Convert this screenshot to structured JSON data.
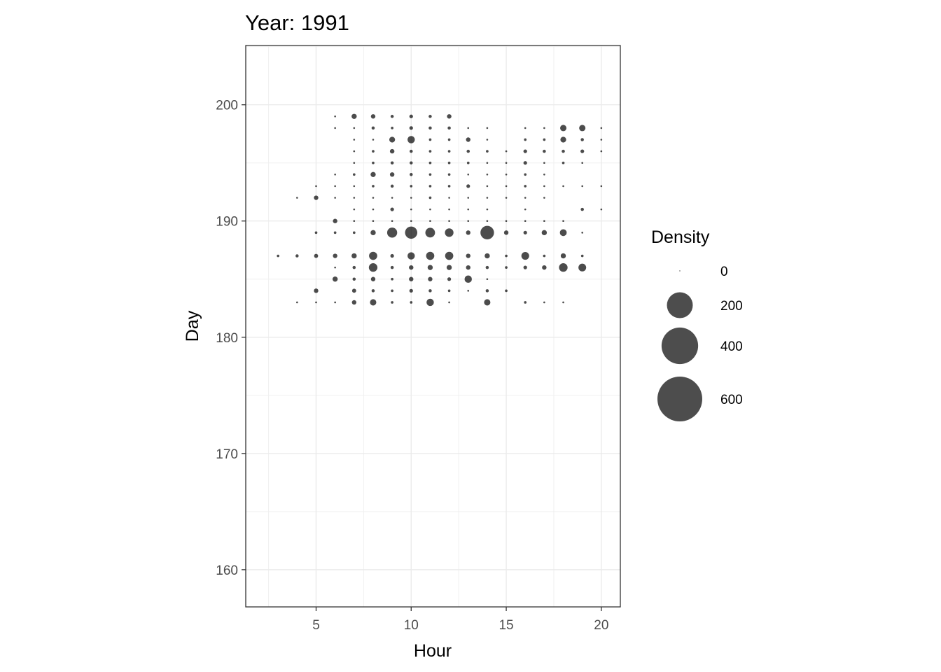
{
  "chart_data": {
    "type": "scatter",
    "title": "Year: 1991",
    "xlabel": "Hour",
    "ylabel": "Day",
    "xlim": [
      1.3,
      21.0
    ],
    "ylim": [
      156.8,
      205.1
    ],
    "x_ticks": [
      5,
      10,
      15,
      20
    ],
    "y_ticks": [
      160,
      170,
      180,
      190,
      200
    ],
    "grid": true,
    "legend": {
      "title": "Density",
      "placement": "right",
      "entries": [
        {
          "label": "0",
          "value": 0
        },
        {
          "label": "200",
          "value": 200
        },
        {
          "label": "400",
          "value": 400
        },
        {
          "label": "600",
          "value": 600
        }
      ]
    },
    "point_color": "#000000",
    "legend_color": "#4d4d4d",
    "points": [
      {
        "x": 6,
        "y": 199,
        "d": 1
      },
      {
        "x": 7,
        "y": 199,
        "d": 8
      },
      {
        "x": 8,
        "y": 199,
        "d": 6
      },
      {
        "x": 9,
        "y": 199,
        "d": 3
      },
      {
        "x": 10,
        "y": 199,
        "d": 4
      },
      {
        "x": 11,
        "y": 199,
        "d": 3
      },
      {
        "x": 12,
        "y": 199,
        "d": 6
      },
      {
        "x": 6,
        "y": 198,
        "d": 1
      },
      {
        "x": 7,
        "y": 198,
        "d": 1
      },
      {
        "x": 8,
        "y": 198,
        "d": 3
      },
      {
        "x": 9,
        "y": 198,
        "d": 2
      },
      {
        "x": 10,
        "y": 198,
        "d": 4
      },
      {
        "x": 11,
        "y": 198,
        "d": 3
      },
      {
        "x": 12,
        "y": 198,
        "d": 3
      },
      {
        "x": 13,
        "y": 198,
        "d": 1
      },
      {
        "x": 14,
        "y": 198,
        "d": 1
      },
      {
        "x": 16,
        "y": 198,
        "d": 1
      },
      {
        "x": 17,
        "y": 198,
        "d": 1
      },
      {
        "x": 18,
        "y": 198,
        "d": 12
      },
      {
        "x": 19,
        "y": 198,
        "d": 12
      },
      {
        "x": 20,
        "y": 198,
        "d": 1
      },
      {
        "x": 7,
        "y": 197,
        "d": 1
      },
      {
        "x": 8,
        "y": 197,
        "d": 1
      },
      {
        "x": 9,
        "y": 197,
        "d": 10
      },
      {
        "x": 10,
        "y": 197,
        "d": 16
      },
      {
        "x": 11,
        "y": 197,
        "d": 2
      },
      {
        "x": 12,
        "y": 197,
        "d": 2
      },
      {
        "x": 13,
        "y": 197,
        "d": 6
      },
      {
        "x": 14,
        "y": 197,
        "d": 1
      },
      {
        "x": 16,
        "y": 197,
        "d": 2
      },
      {
        "x": 17,
        "y": 197,
        "d": 2
      },
      {
        "x": 18,
        "y": 197,
        "d": 10
      },
      {
        "x": 19,
        "y": 197,
        "d": 3
      },
      {
        "x": 20,
        "y": 197,
        "d": 1
      },
      {
        "x": 7,
        "y": 196,
        "d": 1
      },
      {
        "x": 8,
        "y": 196,
        "d": 2
      },
      {
        "x": 9,
        "y": 196,
        "d": 6
      },
      {
        "x": 10,
        "y": 196,
        "d": 3
      },
      {
        "x": 11,
        "y": 196,
        "d": 2
      },
      {
        "x": 12,
        "y": 196,
        "d": 2
      },
      {
        "x": 13,
        "y": 196,
        "d": 3
      },
      {
        "x": 14,
        "y": 196,
        "d": 2
      },
      {
        "x": 15,
        "y": 196,
        "d": 1
      },
      {
        "x": 16,
        "y": 196,
        "d": 4
      },
      {
        "x": 17,
        "y": 196,
        "d": 3
      },
      {
        "x": 18,
        "y": 196,
        "d": 3
      },
      {
        "x": 19,
        "y": 196,
        "d": 4
      },
      {
        "x": 20,
        "y": 196,
        "d": 1
      },
      {
        "x": 7,
        "y": 195,
        "d": 1
      },
      {
        "x": 8,
        "y": 195,
        "d": 2
      },
      {
        "x": 9,
        "y": 195,
        "d": 3
      },
      {
        "x": 10,
        "y": 195,
        "d": 3
      },
      {
        "x": 11,
        "y": 195,
        "d": 2
      },
      {
        "x": 12,
        "y": 195,
        "d": 2
      },
      {
        "x": 13,
        "y": 195,
        "d": 2
      },
      {
        "x": 14,
        "y": 195,
        "d": 1
      },
      {
        "x": 15,
        "y": 195,
        "d": 1
      },
      {
        "x": 16,
        "y": 195,
        "d": 4
      },
      {
        "x": 17,
        "y": 195,
        "d": 1
      },
      {
        "x": 18,
        "y": 195,
        "d": 2
      },
      {
        "x": 19,
        "y": 195,
        "d": 1
      },
      {
        "x": 6,
        "y": 194,
        "d": 1
      },
      {
        "x": 7,
        "y": 194,
        "d": 2
      },
      {
        "x": 8,
        "y": 194,
        "d": 8
      },
      {
        "x": 9,
        "y": 194,
        "d": 6
      },
      {
        "x": 10,
        "y": 194,
        "d": 3
      },
      {
        "x": 11,
        "y": 194,
        "d": 2
      },
      {
        "x": 12,
        "y": 194,
        "d": 2
      },
      {
        "x": 13,
        "y": 194,
        "d": 1
      },
      {
        "x": 14,
        "y": 194,
        "d": 1
      },
      {
        "x": 15,
        "y": 194,
        "d": 1
      },
      {
        "x": 16,
        "y": 194,
        "d": 2
      },
      {
        "x": 17,
        "y": 194,
        "d": 1
      },
      {
        "x": 6,
        "y": 193,
        "d": 1
      },
      {
        "x": 7,
        "y": 193,
        "d": 1
      },
      {
        "x": 8,
        "y": 193,
        "d": 2
      },
      {
        "x": 9,
        "y": 193,
        "d": 3
      },
      {
        "x": 10,
        "y": 193,
        "d": 2
      },
      {
        "x": 11,
        "y": 193,
        "d": 2
      },
      {
        "x": 12,
        "y": 193,
        "d": 2
      },
      {
        "x": 13,
        "y": 193,
        "d": 4
      },
      {
        "x": 14,
        "y": 193,
        "d": 1
      },
      {
        "x": 15,
        "y": 193,
        "d": 1
      },
      {
        "x": 16,
        "y": 193,
        "d": 2
      },
      {
        "x": 17,
        "y": 193,
        "d": 1
      },
      {
        "x": 5,
        "y": 193,
        "d": 1
      },
      {
        "x": 18,
        "y": 193,
        "d": 1
      },
      {
        "x": 19,
        "y": 193,
        "d": 1
      },
      {
        "x": 20,
        "y": 193,
        "d": 1
      },
      {
        "x": 4,
        "y": 192,
        "d": 1
      },
      {
        "x": 5,
        "y": 192,
        "d": 6
      },
      {
        "x": 6,
        "y": 192,
        "d": 1
      },
      {
        "x": 7,
        "y": 192,
        "d": 1
      },
      {
        "x": 8,
        "y": 192,
        "d": 1
      },
      {
        "x": 9,
        "y": 192,
        "d": 1
      },
      {
        "x": 10,
        "y": 192,
        "d": 1
      },
      {
        "x": 11,
        "y": 192,
        "d": 2
      },
      {
        "x": 12,
        "y": 192,
        "d": 1
      },
      {
        "x": 13,
        "y": 192,
        "d": 1
      },
      {
        "x": 14,
        "y": 192,
        "d": 1
      },
      {
        "x": 15,
        "y": 192,
        "d": 1
      },
      {
        "x": 16,
        "y": 192,
        "d": 1
      },
      {
        "x": 17,
        "y": 192,
        "d": 1
      },
      {
        "x": 7,
        "y": 191,
        "d": 1
      },
      {
        "x": 8,
        "y": 191,
        "d": 1
      },
      {
        "x": 9,
        "y": 191,
        "d": 4
      },
      {
        "x": 10,
        "y": 191,
        "d": 1
      },
      {
        "x": 11,
        "y": 191,
        "d": 1
      },
      {
        "x": 12,
        "y": 191,
        "d": 1
      },
      {
        "x": 13,
        "y": 191,
        "d": 1
      },
      {
        "x": 14,
        "y": 191,
        "d": 1
      },
      {
        "x": 16,
        "y": 191,
        "d": 1
      },
      {
        "x": 19,
        "y": 191,
        "d": 3
      },
      {
        "x": 20,
        "y": 191,
        "d": 1
      },
      {
        "x": 6,
        "y": 190,
        "d": 6
      },
      {
        "x": 7,
        "y": 190,
        "d": 1
      },
      {
        "x": 8,
        "y": 190,
        "d": 1
      },
      {
        "x": 9,
        "y": 190,
        "d": 1
      },
      {
        "x": 10,
        "y": 190,
        "d": 1
      },
      {
        "x": 11,
        "y": 190,
        "d": 1
      },
      {
        "x": 12,
        "y": 190,
        "d": 1
      },
      {
        "x": 13,
        "y": 190,
        "d": 1
      },
      {
        "x": 14,
        "y": 190,
        "d": 1
      },
      {
        "x": 15,
        "y": 190,
        "d": 1
      },
      {
        "x": 16,
        "y": 190,
        "d": 1
      },
      {
        "x": 17,
        "y": 190,
        "d": 1
      },
      {
        "x": 18,
        "y": 190,
        "d": 1
      },
      {
        "x": 5,
        "y": 189,
        "d": 2
      },
      {
        "x": 6,
        "y": 189,
        "d": 2
      },
      {
        "x": 7,
        "y": 189,
        "d": 2
      },
      {
        "x": 8,
        "y": 189,
        "d": 8
      },
      {
        "x": 9,
        "y": 189,
        "d": 30
      },
      {
        "x": 10,
        "y": 189,
        "d": 45
      },
      {
        "x": 11,
        "y": 189,
        "d": 28
      },
      {
        "x": 12,
        "y": 189,
        "d": 22
      },
      {
        "x": 13,
        "y": 189,
        "d": 6
      },
      {
        "x": 14,
        "y": 189,
        "d": 55
      },
      {
        "x": 15,
        "y": 189,
        "d": 6
      },
      {
        "x": 16,
        "y": 189,
        "d": 4
      },
      {
        "x": 17,
        "y": 189,
        "d": 8
      },
      {
        "x": 18,
        "y": 189,
        "d": 14
      },
      {
        "x": 19,
        "y": 189,
        "d": 1
      },
      {
        "x": 3,
        "y": 187,
        "d": 2
      },
      {
        "x": 4,
        "y": 187,
        "d": 3
      },
      {
        "x": 5,
        "y": 187,
        "d": 5
      },
      {
        "x": 6,
        "y": 187,
        "d": 6
      },
      {
        "x": 7,
        "y": 187,
        "d": 8
      },
      {
        "x": 8,
        "y": 187,
        "d": 20
      },
      {
        "x": 9,
        "y": 187,
        "d": 4
      },
      {
        "x": 10,
        "y": 187,
        "d": 16
      },
      {
        "x": 11,
        "y": 187,
        "d": 20
      },
      {
        "x": 12,
        "y": 187,
        "d": 20
      },
      {
        "x": 13,
        "y": 187,
        "d": 6
      },
      {
        "x": 14,
        "y": 187,
        "d": 8
      },
      {
        "x": 15,
        "y": 187,
        "d": 2
      },
      {
        "x": 16,
        "y": 187,
        "d": 18
      },
      {
        "x": 17,
        "y": 187,
        "d": 2
      },
      {
        "x": 18,
        "y": 187,
        "d": 8
      },
      {
        "x": 19,
        "y": 187,
        "d": 2
      },
      {
        "x": 6,
        "y": 186,
        "d": 1
      },
      {
        "x": 7,
        "y": 186,
        "d": 3
      },
      {
        "x": 8,
        "y": 186,
        "d": 22
      },
      {
        "x": 9,
        "y": 186,
        "d": 3
      },
      {
        "x": 10,
        "y": 186,
        "d": 6
      },
      {
        "x": 11,
        "y": 186,
        "d": 8
      },
      {
        "x": 12,
        "y": 186,
        "d": 8
      },
      {
        "x": 13,
        "y": 186,
        "d": 6
      },
      {
        "x": 14,
        "y": 186,
        "d": 3
      },
      {
        "x": 15,
        "y": 186,
        "d": 2
      },
      {
        "x": 16,
        "y": 186,
        "d": 4
      },
      {
        "x": 17,
        "y": 186,
        "d": 6
      },
      {
        "x": 18,
        "y": 186,
        "d": 22
      },
      {
        "x": 19,
        "y": 186,
        "d": 18
      },
      {
        "x": 6,
        "y": 185,
        "d": 8
      },
      {
        "x": 7,
        "y": 185,
        "d": 3
      },
      {
        "x": 8,
        "y": 185,
        "d": 6
      },
      {
        "x": 9,
        "y": 185,
        "d": 2
      },
      {
        "x": 10,
        "y": 185,
        "d": 6
      },
      {
        "x": 11,
        "y": 185,
        "d": 6
      },
      {
        "x": 12,
        "y": 185,
        "d": 4
      },
      {
        "x": 13,
        "y": 185,
        "d": 16
      },
      {
        "x": 14,
        "y": 185,
        "d": 1
      },
      {
        "x": 5,
        "y": 184,
        "d": 6
      },
      {
        "x": 7,
        "y": 184,
        "d": 5
      },
      {
        "x": 8,
        "y": 184,
        "d": 3
      },
      {
        "x": 9,
        "y": 184,
        "d": 2
      },
      {
        "x": 10,
        "y": 184,
        "d": 4
      },
      {
        "x": 11,
        "y": 184,
        "d": 3
      },
      {
        "x": 12,
        "y": 184,
        "d": 2
      },
      {
        "x": 13,
        "y": 184,
        "d": 1
      },
      {
        "x": 14,
        "y": 184,
        "d": 3
      },
      {
        "x": 15,
        "y": 184,
        "d": 2
      },
      {
        "x": 4,
        "y": 183,
        "d": 1
      },
      {
        "x": 5,
        "y": 183,
        "d": 1
      },
      {
        "x": 6,
        "y": 183,
        "d": 1
      },
      {
        "x": 7,
        "y": 183,
        "d": 6
      },
      {
        "x": 8,
        "y": 183,
        "d": 12
      },
      {
        "x": 9,
        "y": 183,
        "d": 2
      },
      {
        "x": 10,
        "y": 183,
        "d": 2
      },
      {
        "x": 11,
        "y": 183,
        "d": 16
      },
      {
        "x": 12,
        "y": 183,
        "d": 1
      },
      {
        "x": 14,
        "y": 183,
        "d": 12
      },
      {
        "x": 16,
        "y": 183,
        "d": 2
      },
      {
        "x": 17,
        "y": 183,
        "d": 1
      },
      {
        "x": 18,
        "y": 183,
        "d": 1
      }
    ]
  }
}
